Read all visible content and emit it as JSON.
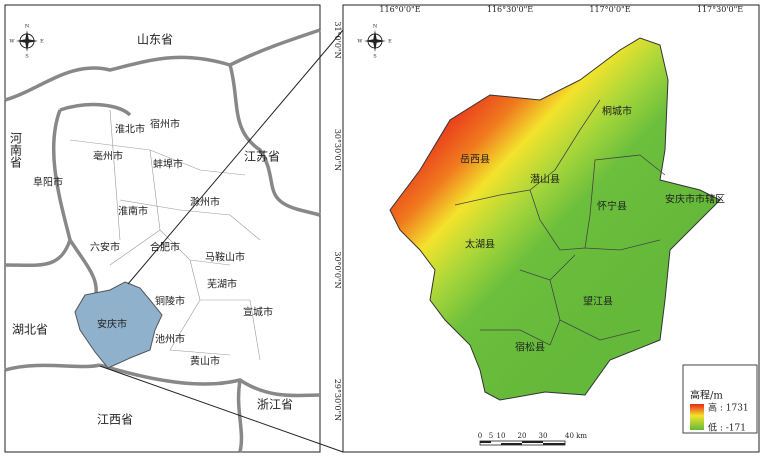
{
  "left_map": {
    "compass": {
      "n": "N",
      "s": "S",
      "w": "W",
      "e": "E"
    },
    "labels": [
      "山东省",
      "河南省",
      "江苏省",
      "淮北市",
      "宿州市",
      "亳州市",
      "蚌埠市",
      "阜阳市",
      "滁州市",
      "淮南市",
      "六安市",
      "合肥市",
      "马鞍山市",
      "芜湖市",
      "铜陵市",
      "宣城市",
      "安庆市",
      "湖北省",
      "池州市",
      "黄山市",
      "江西省",
      "浙江省"
    ]
  },
  "right_map": {
    "compass": {
      "n": "N",
      "s": "S",
      "w": "W",
      "e": "E"
    },
    "lon_labels": [
      "116°0'0\"E",
      "116°30'0\"E",
      "117°0'0\"E",
      "117°30'0\"E"
    ],
    "lat_labels": [
      "31°0'0\"N",
      "30°30'0\"N",
      "30°0'0\"N",
      "29°30'0\"N"
    ],
    "labels": [
      "岳西县",
      "潜山县",
      "桐城市",
      "怀宁县",
      "安庆市市辖区",
      "太湖县",
      "望江县",
      "宿松县"
    ],
    "legend": {
      "title": "高程/m",
      "high": "高 : 1731",
      "low": "低 : -171"
    },
    "scale": [
      "0",
      "5",
      "10",
      "20",
      "30",
      "40 km"
    ]
  }
}
